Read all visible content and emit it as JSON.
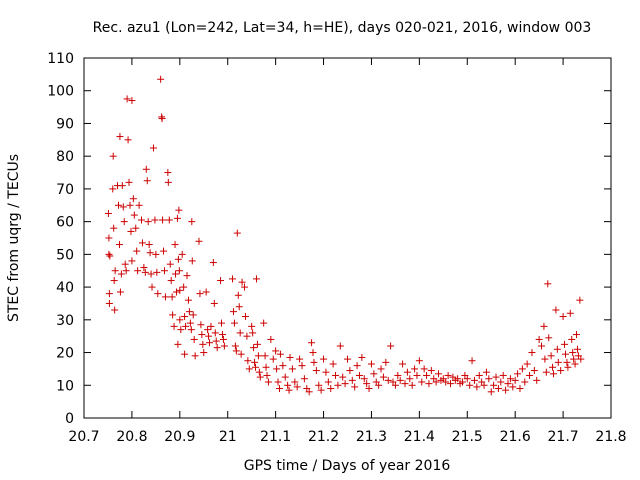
{
  "chart_data": {
    "type": "scatter",
    "title": "Rec. azu1 (Lon=242, Lat=34, h=HE), days 020-021, 2016, window 003",
    "xlabel": "GPS time / Days of year 2016",
    "ylabel": "STEC from uqrg / TECUs",
    "xlim": [
      20.7,
      21.8
    ],
    "ylim": [
      0,
      110
    ],
    "xticks": [
      "20.7",
      "20.8",
      "20.9",
      "21",
      "21.1",
      "21.2",
      "21.3",
      "21.4",
      "21.5",
      "21.6",
      "21.7",
      "21.8"
    ],
    "yticks": [
      "0",
      "10",
      "20",
      "30",
      "40",
      "50",
      "60",
      "70",
      "80",
      "90",
      "100",
      "110"
    ],
    "grid": false,
    "legend": "none",
    "color": "#cc0000",
    "marker": "plus",
    "series": [
      {
        "points": [
          [
            20.751,
            62.5
          ],
          [
            20.752,
            55.0
          ],
          [
            20.752,
            50.0
          ],
          [
            20.753,
            38.0
          ],
          [
            20.753,
            35.0
          ],
          [
            20.754,
            49.5
          ],
          [
            20.76,
            70.0
          ],
          [
            20.761,
            80.0
          ],
          [
            20.762,
            58.0
          ],
          [
            20.763,
            42.0
          ],
          [
            20.764,
            33.0
          ],
          [
            20.765,
            45.0
          ],
          [
            20.77,
            71.0
          ],
          [
            20.772,
            65.0
          ],
          [
            20.774,
            53.0
          ],
          [
            20.776,
            38.5
          ],
          [
            20.778,
            44.0
          ],
          [
            20.775,
            86.0
          ],
          [
            20.78,
            71.0
          ],
          [
            20.782,
            64.5
          ],
          [
            20.784,
            60.0
          ],
          [
            20.786,
            47.0
          ],
          [
            20.788,
            45.0
          ],
          [
            20.79,
            97.5
          ],
          [
            20.792,
            85.0
          ],
          [
            20.794,
            72.0
          ],
          [
            20.796,
            65.0
          ],
          [
            20.798,
            57.0
          ],
          [
            20.8,
            48.0
          ],
          [
            20.8,
            97.0
          ],
          [
            20.803,
            67.0
          ],
          [
            20.805,
            62.0
          ],
          [
            20.808,
            58.0
          ],
          [
            20.81,
            51.0
          ],
          [
            20.812,
            45.0
          ],
          [
            20.815,
            65.0
          ],
          [
            20.82,
            60.5
          ],
          [
            20.822,
            53.5
          ],
          [
            20.825,
            46.0
          ],
          [
            20.828,
            44.5
          ],
          [
            20.83,
            76.0
          ],
          [
            20.832,
            72.5
          ],
          [
            20.834,
            60.0
          ],
          [
            20.836,
            53.0
          ],
          [
            20.838,
            50.5
          ],
          [
            20.84,
            44.0
          ],
          [
            20.842,
            40.0
          ],
          [
            20.845,
            82.5
          ],
          [
            20.848,
            60.5
          ],
          [
            20.85,
            50.0
          ],
          [
            20.852,
            44.5
          ],
          [
            20.854,
            38.0
          ],
          [
            20.86,
            103.5
          ],
          [
            20.862,
            92.0
          ],
          [
            20.863,
            91.5
          ],
          [
            20.864,
            60.5
          ],
          [
            20.866,
            51.0
          ],
          [
            20.868,
            45.0
          ],
          [
            20.87,
            37.0
          ],
          [
            20.875,
            75.0
          ],
          [
            20.876,
            72.0
          ],
          [
            20.878,
            60.5
          ],
          [
            20.88,
            47.0
          ],
          [
            20.882,
            42.0
          ],
          [
            20.884,
            37.0
          ],
          [
            20.885,
            31.5
          ],
          [
            20.888,
            28.0
          ],
          [
            20.89,
            53.0
          ],
          [
            20.891,
            44.0
          ],
          [
            20.893,
            38.5
          ],
          [
            20.895,
            61.0
          ],
          [
            20.897,
            48.5
          ],
          [
            20.899,
            45.0
          ],
          [
            20.9,
            39.0
          ],
          [
            20.9,
            30.0
          ],
          [
            20.902,
            27.0
          ],
          [
            20.898,
            63.5
          ],
          [
            20.896,
            22.5
          ],
          [
            20.905,
            50.0
          ],
          [
            20.908,
            40.0
          ],
          [
            20.91,
            31.0
          ],
          [
            20.912,
            28.0
          ],
          [
            20.91,
            19.5
          ],
          [
            20.915,
            43.5
          ],
          [
            20.918,
            36.0
          ],
          [
            20.92,
            32.5
          ],
          [
            20.922,
            29.0
          ],
          [
            20.924,
            27.0
          ],
          [
            20.925,
            60.0
          ],
          [
            20.926,
            48.0
          ],
          [
            20.928,
            31.5
          ],
          [
            20.93,
            24.0
          ],
          [
            20.932,
            19.0
          ],
          [
            20.94,
            54.0
          ],
          [
            20.942,
            38.0
          ],
          [
            20.944,
            28.5
          ],
          [
            20.946,
            25.5
          ],
          [
            20.948,
            22.5
          ],
          [
            20.95,
            20.0
          ],
          [
            20.955,
            38.5
          ],
          [
            20.958,
            27.0
          ],
          [
            20.96,
            25.0
          ],
          [
            20.962,
            23.0
          ],
          [
            20.965,
            28.0
          ],
          [
            20.97,
            47.5
          ],
          [
            20.972,
            35.0
          ],
          [
            20.974,
            26.0
          ],
          [
            20.976,
            23.5
          ],
          [
            20.978,
            21.5
          ],
          [
            20.985,
            42.0
          ],
          [
            20.987,
            29.0
          ],
          [
            20.989,
            25.5
          ],
          [
            20.991,
            24.0
          ],
          [
            20.993,
            22.0
          ],
          [
            21.01,
            42.5
          ],
          [
            21.012,
            32.5
          ],
          [
            21.014,
            29.0
          ],
          [
            21.016,
            22.0
          ],
          [
            21.018,
            20.5
          ],
          [
            21.02,
            56.5
          ],
          [
            21.022,
            37.5
          ],
          [
            21.024,
            34.0
          ],
          [
            21.026,
            26.0
          ],
          [
            21.028,
            19.5
          ],
          [
            21.03,
            41.5
          ],
          [
            21.035,
            40.0
          ],
          [
            21.037,
            31.0
          ],
          [
            21.04,
            25.0
          ],
          [
            21.042,
            17.5
          ],
          [
            21.045,
            15.0
          ],
          [
            21.05,
            28.0
          ],
          [
            21.052,
            26.0
          ],
          [
            21.054,
            21.5
          ],
          [
            21.056,
            17.0
          ],
          [
            21.058,
            15.5
          ],
          [
            21.06,
            42.5
          ],
          [
            21.062,
            22.5
          ],
          [
            21.064,
            19.0
          ],
          [
            21.066,
            14.0
          ],
          [
            21.068,
            12.5
          ],
          [
            21.075,
            29.0
          ],
          [
            21.078,
            19.0
          ],
          [
            21.08,
            15.5
          ],
          [
            21.082,
            13.0
          ],
          [
            21.085,
            11.0
          ],
          [
            21.09,
            24.0
          ],
          [
            21.095,
            18.0
          ],
          [
            21.1,
            20.5
          ],
          [
            21.102,
            15.0
          ],
          [
            21.105,
            11.0
          ],
          [
            21.108,
            9.0
          ],
          [
            21.11,
            19.5
          ],
          [
            21.115,
            16.0
          ],
          [
            21.12,
            12.5
          ],
          [
            21.125,
            10.0
          ],
          [
            21.128,
            8.5
          ],
          [
            21.13,
            18.5
          ],
          [
            21.135,
            15.0
          ],
          [
            21.14,
            11.0
          ],
          [
            21.145,
            9.5
          ],
          [
            21.15,
            18.0
          ],
          [
            21.155,
            16.0
          ],
          [
            21.16,
            12.0
          ],
          [
            21.165,
            9.0
          ],
          [
            21.17,
            8.0
          ],
          [
            21.175,
            23.0
          ],
          [
            21.178,
            20.0
          ],
          [
            21.18,
            17.0
          ],
          [
            21.185,
            14.5
          ],
          [
            21.19,
            10.0
          ],
          [
            21.195,
            8.5
          ],
          [
            21.2,
            18.0
          ],
          [
            21.205,
            14.0
          ],
          [
            21.21,
            11.0
          ],
          [
            21.215,
            9.0
          ],
          [
            21.22,
            16.5
          ],
          [
            21.225,
            13.0
          ],
          [
            21.23,
            10.0
          ],
          [
            21.235,
            22.0
          ],
          [
            21.24,
            12.5
          ],
          [
            21.245,
            10.5
          ],
          [
            21.25,
            18.0
          ],
          [
            21.255,
            14.5
          ],
          [
            21.26,
            11.5
          ],
          [
            21.265,
            9.5
          ],
          [
            21.27,
            16.0
          ],
          [
            21.275,
            13.0
          ],
          [
            21.28,
            18.5
          ],
          [
            21.285,
            12.0
          ],
          [
            21.29,
            10.5
          ],
          [
            21.295,
            9.0
          ],
          [
            21.3,
            16.5
          ],
          [
            21.305,
            13.5
          ],
          [
            21.31,
            11.0
          ],
          [
            21.315,
            10.0
          ],
          [
            21.32,
            15.0
          ],
          [
            21.325,
            12.5
          ],
          [
            21.33,
            17.0
          ],
          [
            21.335,
            11.5
          ],
          [
            21.34,
            22.0
          ],
          [
            21.345,
            11.0
          ],
          [
            21.35,
            10.0
          ],
          [
            21.355,
            13.0
          ],
          [
            21.36,
            11.5
          ],
          [
            21.365,
            16.5
          ],
          [
            21.37,
            10.5
          ],
          [
            21.375,
            14.0
          ],
          [
            21.38,
            12.0
          ],
          [
            21.385,
            10.0
          ],
          [
            21.39,
            15.0
          ],
          [
            21.395,
            13.0
          ],
          [
            21.4,
            17.5
          ],
          [
            21.405,
            11.0
          ],
          [
            21.41,
            15.0
          ],
          [
            21.415,
            13.0
          ],
          [
            21.42,
            10.5
          ],
          [
            21.425,
            14.5
          ],
          [
            21.43,
            12.0
          ],
          [
            21.435,
            11.0
          ],
          [
            21.44,
            13.5
          ],
          [
            21.445,
            11.5
          ],
          [
            21.45,
            12.0
          ],
          [
            21.455,
            11.0
          ],
          [
            21.46,
            13.0
          ],
          [
            21.465,
            10.5
          ],
          [
            21.47,
            12.5
          ],
          [
            21.475,
            11.5
          ],
          [
            21.48,
            12.0
          ],
          [
            21.485,
            10.5
          ],
          [
            21.49,
            11.0
          ],
          [
            21.495,
            13.0
          ],
          [
            21.5,
            12.0
          ],
          [
            21.505,
            10.0
          ],
          [
            21.51,
            17.5
          ],
          [
            21.515,
            11.5
          ],
          [
            21.52,
            9.5
          ],
          [
            21.525,
            13.0
          ],
          [
            21.53,
            11.0
          ],
          [
            21.535,
            10.0
          ],
          [
            21.54,
            14.0
          ],
          [
            21.545,
            12.0
          ],
          [
            21.55,
            8.0
          ],
          [
            21.555,
            10.0
          ],
          [
            21.56,
            12.5
          ],
          [
            21.565,
            9.0
          ],
          [
            21.57,
            11.0
          ],
          [
            21.575,
            13.0
          ],
          [
            21.58,
            8.5
          ],
          [
            21.585,
            10.5
          ],
          [
            21.59,
            12.0
          ],
          [
            21.595,
            9.5
          ],
          [
            21.6,
            11.5
          ],
          [
            21.605,
            13.5
          ],
          [
            21.61,
            9.0
          ],
          [
            21.615,
            15.0
          ],
          [
            21.62,
            11.0
          ],
          [
            21.625,
            16.5
          ],
          [
            21.63,
            13.0
          ],
          [
            21.635,
            20.0
          ],
          [
            21.64,
            14.5
          ],
          [
            21.645,
            11.5
          ],
          [
            21.65,
            24.0
          ],
          [
            21.655,
            22.0
          ],
          [
            21.66,
            28.0
          ],
          [
            21.662,
            18.0
          ],
          [
            21.665,
            14.0
          ],
          [
            21.668,
            41.0
          ],
          [
            21.67,
            24.5
          ],
          [
            21.675,
            19.0
          ],
          [
            21.678,
            15.5
          ],
          [
            21.68,
            13.5
          ],
          [
            21.685,
            33.0
          ],
          [
            21.688,
            21.0
          ],
          [
            21.69,
            17.0
          ],
          [
            21.695,
            14.5
          ],
          [
            21.7,
            31.0
          ],
          [
            21.703,
            22.5
          ],
          [
            21.705,
            19.5
          ],
          [
            21.708,
            17.0
          ],
          [
            21.71,
            15.5
          ],
          [
            21.715,
            32.0
          ],
          [
            21.718,
            24.0
          ],
          [
            21.72,
            20.0
          ],
          [
            21.722,
            18.0
          ],
          [
            21.725,
            16.5
          ],
          [
            21.728,
            25.5
          ],
          [
            21.73,
            21.0
          ],
          [
            21.732,
            19.0
          ],
          [
            21.735,
            36.0
          ],
          [
            21.737,
            18.0
          ]
        ]
      }
    ]
  }
}
